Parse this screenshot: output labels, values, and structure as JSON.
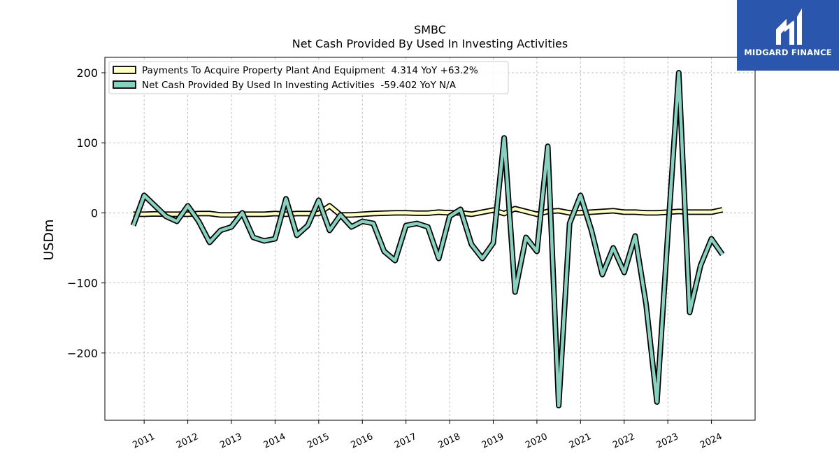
{
  "chart_data": {
    "type": "line",
    "title": "SMBC",
    "subtitle": "Net Cash Provided By Used In Investing Activities",
    "ylabel": "USDm",
    "xlabel": "",
    "ylim": [
      -296,
      222
    ],
    "xlim": [
      2010.1,
      2025.0
    ],
    "yticks": [
      200,
      100,
      0,
      -100,
      -200
    ],
    "ytick_labels": [
      "200",
      "100",
      "0",
      "−100",
      "−200"
    ],
    "xticks": [
      2011,
      2012,
      2013,
      2014,
      2015,
      2016,
      2017,
      2018,
      2019,
      2020,
      2021,
      2022,
      2023,
      2024
    ],
    "grid": true,
    "legend_position": "top-left",
    "series": [
      {
        "name": "Payments To Acquire Property Plant And Equipment",
        "legend": "Payments To Acquire Property Plant And Equipment  4.314 YoY +63.2%",
        "color": "#ffffc4",
        "x": [
          2010.75,
          2011.0,
          2011.25,
          2011.5,
          2011.75,
          2012.0,
          2012.25,
          2012.5,
          2012.75,
          2013.0,
          2013.25,
          2013.5,
          2013.75,
          2014.0,
          2014.25,
          2014.5,
          2014.75,
          2015.0,
          2015.25,
          2015.5,
          2015.75,
          2016.0,
          2016.25,
          2016.5,
          2016.75,
          2017.0,
          2017.25,
          2017.5,
          2017.75,
          2018.0,
          2018.25,
          2018.5,
          2018.75,
          2019.0,
          2019.25,
          2019.5,
          2019.75,
          2020.0,
          2020.25,
          2020.5,
          2020.75,
          2021.0,
          2021.25,
          2021.5,
          2021.75,
          2022.0,
          2022.25,
          2022.5,
          2022.75,
          2023.0,
          2023.25,
          2023.5,
          2023.75,
          2024.0,
          2024.25
        ],
        "values": [
          -2,
          -2,
          -1.5,
          -2,
          -2,
          -2,
          -1,
          -1,
          -3,
          -3,
          -2,
          -2,
          -2,
          -1,
          -2,
          -1,
          -1,
          -1,
          10,
          -3,
          -3,
          -2,
          -1,
          -0.5,
          0,
          0,
          -0.5,
          -0.5,
          1,
          0,
          0,
          -2,
          1,
          4,
          -1,
          6,
          2,
          -2,
          2,
          3,
          0,
          0,
          1,
          2,
          3,
          1,
          1,
          0,
          0,
          1,
          2,
          1,
          1,
          1,
          4.314
        ]
      },
      {
        "name": "Net Cash Provided By Used In Investing Activities",
        "legend": "Net Cash Provided By Used In Investing Activities  -59.402 YoY N/A",
        "color": "#88d0c0",
        "x": [
          2010.75,
          2011.0,
          2011.25,
          2011.5,
          2011.75,
          2012.0,
          2012.25,
          2012.5,
          2012.75,
          2013.0,
          2013.25,
          2013.5,
          2013.75,
          2014.0,
          2014.25,
          2014.5,
          2014.75,
          2015.0,
          2015.25,
          2015.5,
          2015.75,
          2016.0,
          2016.25,
          2016.5,
          2016.75,
          2017.0,
          2017.25,
          2017.5,
          2017.75,
          2018.0,
          2018.25,
          2018.5,
          2018.75,
          2019.0,
          2019.25,
          2019.5,
          2019.75,
          2020.0,
          2020.25,
          2020.5,
          2020.75,
          2021.0,
          2021.25,
          2021.5,
          2021.75,
          2022.0,
          2022.25,
          2022.5,
          2022.75,
          2023.0,
          2023.25,
          2023.5,
          2023.75,
          2024.0,
          2024.25
        ],
        "values": [
          -18,
          25,
          10,
          -5,
          -12,
          10,
          -12,
          -42,
          -25,
          -20,
          0,
          -35,
          -40,
          -37,
          20,
          -32,
          -18,
          18,
          -25,
          -3,
          -20,
          -12,
          -15,
          -55,
          -68,
          -18,
          -15,
          -20,
          -65,
          -5,
          5,
          -45,
          -65,
          -43,
          107,
          -113,
          -35,
          -55,
          95,
          -275,
          -15,
          25,
          -25,
          -88,
          -50,
          -85,
          -33,
          -130,
          -270,
          -30,
          200,
          -142,
          -75,
          -37,
          -59.402
        ]
      }
    ]
  },
  "logo": {
    "name": "MIDGARD FINANCE",
    "color": "#2a57ad"
  }
}
